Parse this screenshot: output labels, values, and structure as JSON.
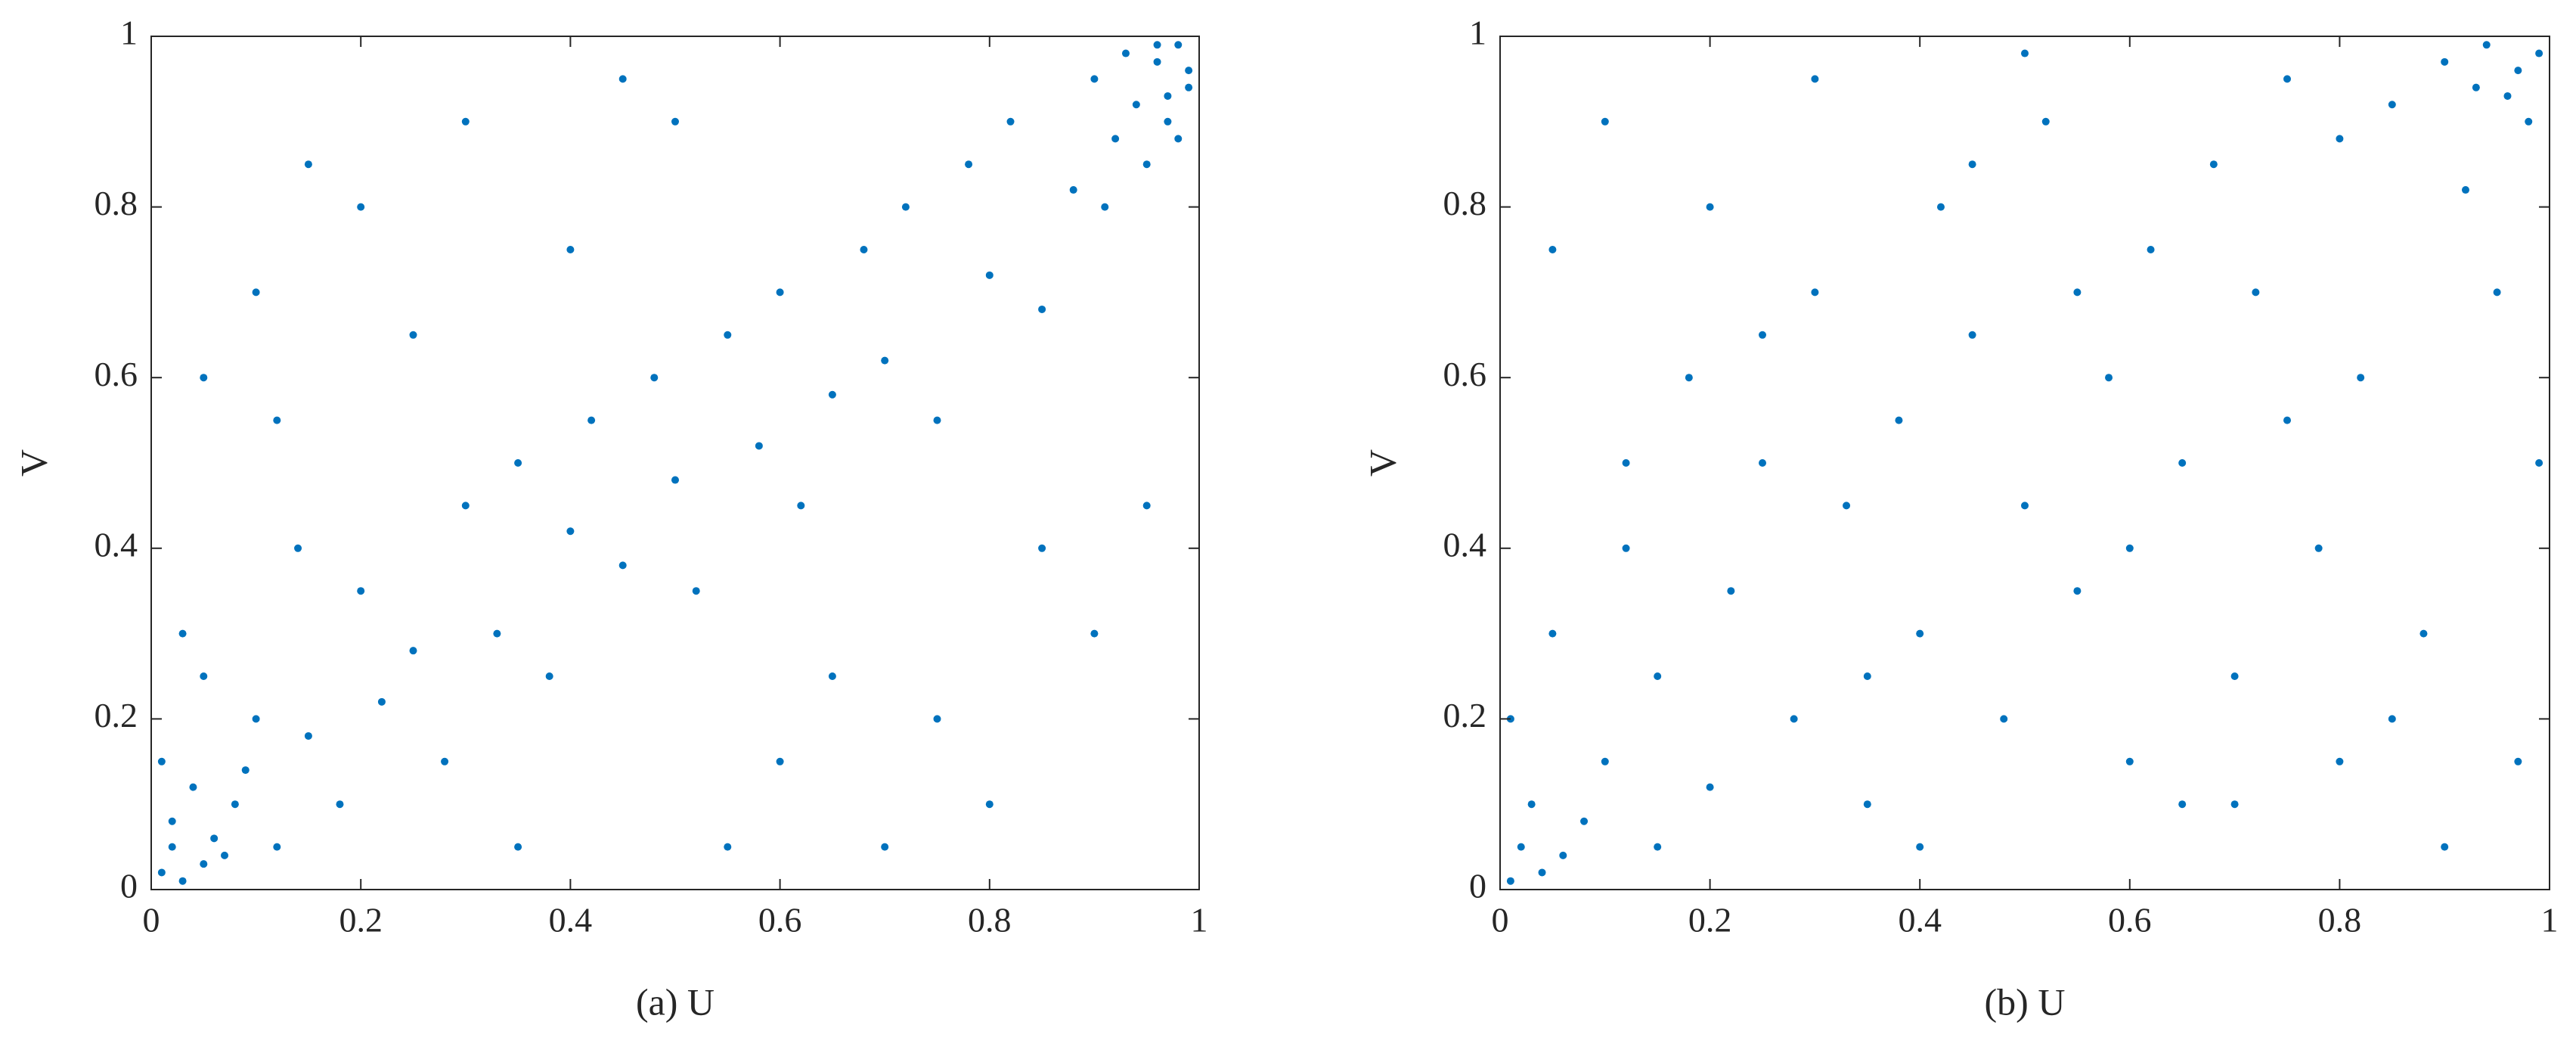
{
  "chart_data": [
    {
      "type": "scatter",
      "xlabel": "(a) U",
      "ylabel": "V",
      "color": "#0072bd",
      "xlim": [
        0,
        1
      ],
      "ylim": [
        0,
        1
      ],
      "xticks": [
        0,
        0.2,
        0.4,
        0.6,
        0.8,
        1
      ],
      "yticks": [
        0,
        0.2,
        0.4,
        0.6,
        0.8,
        1
      ],
      "x": [
        0.01,
        0.02,
        0.03,
        0.05,
        0.02,
        0.04,
        0.07,
        0.01,
        0.06,
        0.08,
        0.1,
        0.12,
        0.15,
        0.05,
        0.03,
        0.09,
        0.18,
        0.2,
        0.22,
        0.25,
        0.14,
        0.28,
        0.3,
        0.33,
        0.35,
        0.38,
        0.4,
        0.42,
        0.45,
        0.48,
        0.5,
        0.52,
        0.55,
        0.58,
        0.6,
        0.62,
        0.65,
        0.68,
        0.7,
        0.72,
        0.75,
        0.78,
        0.8,
        0.82,
        0.85,
        0.88,
        0.9,
        0.92,
        0.94,
        0.96,
        0.97,
        0.98,
        0.99,
        0.95,
        0.93,
        0.97,
        0.99,
        0.91,
        0.96,
        0.98,
        0.1,
        0.2,
        0.3,
        0.05,
        0.15,
        0.6,
        0.7,
        0.8,
        0.9,
        0.4,
        0.5,
        0.25,
        0.35,
        0.65,
        0.85,
        0.75,
        0.55,
        0.45,
        0.12,
        0.95
      ],
      "values": [
        0.02,
        0.05,
        0.01,
        0.03,
        0.08,
        0.12,
        0.04,
        0.15,
        0.06,
        0.1,
        0.2,
        0.05,
        0.18,
        0.25,
        0.3,
        0.14,
        0.1,
        0.35,
        0.22,
        0.28,
        0.4,
        0.15,
        0.45,
        0.3,
        0.5,
        0.25,
        0.42,
        0.55,
        0.38,
        0.6,
        0.48,
        0.35,
        0.65,
        0.52,
        0.7,
        0.45,
        0.58,
        0.75,
        0.62,
        0.8,
        0.55,
        0.85,
        0.72,
        0.9,
        0.68,
        0.82,
        0.95,
        0.88,
        0.92,
        0.97,
        0.93,
        0.99,
        0.96,
        0.85,
        0.98,
        0.9,
        0.94,
        0.8,
        0.99,
        0.88,
        0.7,
        0.8,
        0.9,
        0.6,
        0.85,
        0.15,
        0.05,
        0.1,
        0.3,
        0.75,
        0.9,
        0.65,
        0.05,
        0.25,
        0.4,
        0.2,
        0.05,
        0.95,
        0.55,
        0.45
      ]
    },
    {
      "type": "scatter",
      "xlabel": "(b) U",
      "ylabel": "V",
      "color": "#0072bd",
      "xlim": [
        0,
        1
      ],
      "ylim": [
        0,
        1
      ],
      "xticks": [
        0,
        0.2,
        0.4,
        0.6,
        0.8,
        1
      ],
      "yticks": [
        0,
        0.2,
        0.4,
        0.6,
        0.8,
        1
      ],
      "x": [
        0.01,
        0.02,
        0.04,
        0.03,
        0.06,
        0.01,
        0.08,
        0.05,
        0.1,
        0.12,
        0.15,
        0.18,
        0.2,
        0.22,
        0.25,
        0.28,
        0.3,
        0.33,
        0.35,
        0.38,
        0.4,
        0.42,
        0.45,
        0.48,
        0.5,
        0.52,
        0.55,
        0.58,
        0.6,
        0.62,
        0.65,
        0.68,
        0.7,
        0.72,
        0.75,
        0.78,
        0.8,
        0.82,
        0.85,
        0.88,
        0.9,
        0.92,
        0.94,
        0.96,
        0.97,
        0.98,
        0.99,
        0.95,
        0.93,
        0.99,
        0.05,
        0.1,
        0.15,
        0.2,
        0.3,
        0.4,
        0.5,
        0.6,
        0.7,
        0.8,
        0.9,
        0.85,
        0.75,
        0.65,
        0.55,
        0.45,
        0.35,
        0.25,
        0.12,
        0.97
      ],
      "values": [
        0.01,
        0.05,
        0.02,
        0.1,
        0.04,
        0.2,
        0.08,
        0.3,
        0.15,
        0.4,
        0.25,
        0.6,
        0.12,
        0.35,
        0.5,
        0.2,
        0.7,
        0.45,
        0.1,
        0.55,
        0.3,
        0.8,
        0.65,
        0.2,
        0.45,
        0.9,
        0.35,
        0.6,
        0.15,
        0.75,
        0.5,
        0.85,
        0.25,
        0.7,
        0.95,
        0.4,
        0.88,
        0.6,
        0.92,
        0.3,
        0.97,
        0.82,
        0.99,
        0.93,
        0.96,
        0.9,
        0.98,
        0.7,
        0.94,
        0.5,
        0.75,
        0.9,
        0.05,
        0.8,
        0.95,
        0.05,
        0.98,
        0.4,
        0.1,
        0.15,
        0.05,
        0.2,
        0.55,
        0.1,
        0.7,
        0.85,
        0.25,
        0.65,
        0.5,
        0.15
      ]
    }
  ]
}
